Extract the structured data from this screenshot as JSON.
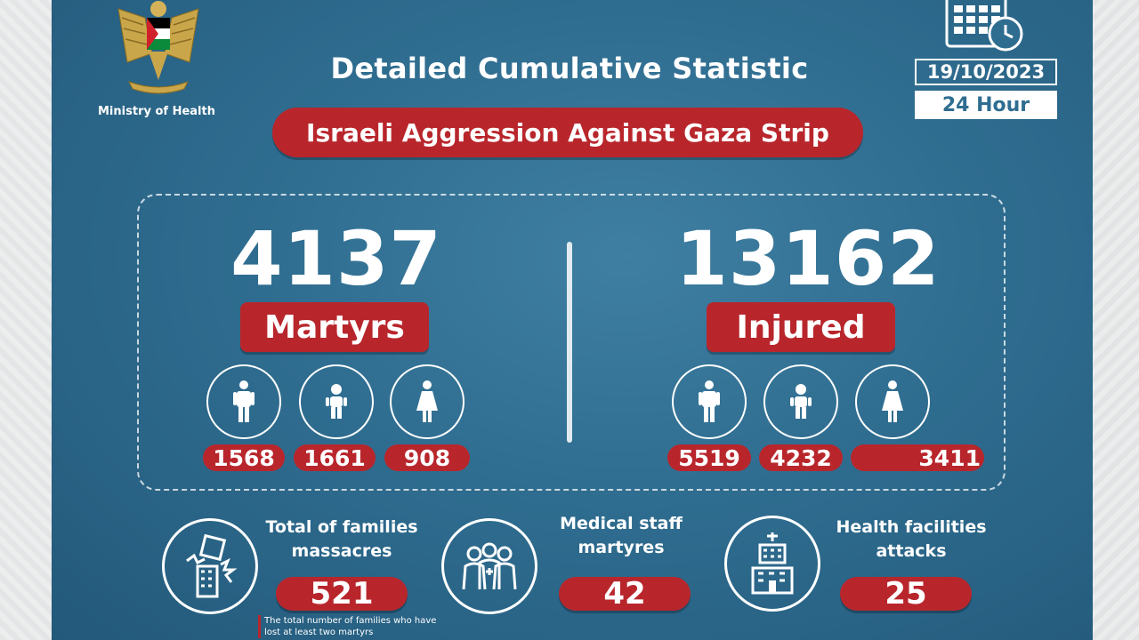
{
  "header": {
    "ministry": "Ministry of Health",
    "title": "Detailed Cumulative Statistic",
    "subtitle": "Israeli Aggression Against Gaza Strip",
    "date": "19/10/2023",
    "period": "24 Hour"
  },
  "martyrs": {
    "total": "4137",
    "label": "Martyrs",
    "men": "1568",
    "children": "1661",
    "women": "908"
  },
  "injured": {
    "total": "13162",
    "label": "Injured",
    "men": "5519",
    "children": "4232",
    "women": "3411"
  },
  "families": {
    "label_line1": "Total of families",
    "label_line2": "massacres",
    "value": "521",
    "note": "The total number of families who have lost at least two martyrs"
  },
  "medical": {
    "label_line1": "Medical staff",
    "label_line2": "martyres",
    "value": "42"
  },
  "facilities": {
    "label_line1": "Health facilities",
    "label_line2": "attacks",
    "value": "25"
  },
  "colors": {
    "background": "#2f6d90",
    "accent_red": "#b8262c",
    "text": "#ffffff"
  },
  "icons": [
    "eagle-emblem",
    "calendar-clock-icon",
    "man-icon",
    "child-icon",
    "woman-icon",
    "collapsed-building-icon",
    "medical-staff-icon",
    "hospital-building-icon"
  ]
}
